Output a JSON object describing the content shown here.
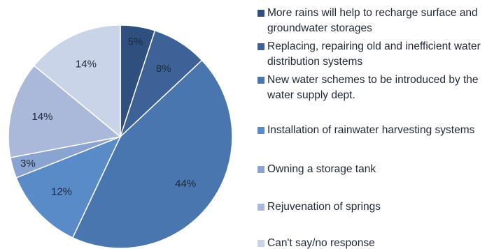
{
  "chart_data": {
    "type": "pie",
    "title": "",
    "slices": [
      {
        "label": "More rains will help to recharge surface and groundwater storages",
        "value": 5,
        "display": "5%",
        "color": "#2f4f7f"
      },
      {
        "label": "Replacing, repairing old and inefficient water distribution systems",
        "value": 8,
        "display": "8%",
        "color": "#3d6298"
      },
      {
        "label": "New water schemes to be introduced by the water supply dept.",
        "value": 44,
        "display": "44%",
        "color": "#4a76b0"
      },
      {
        "label": "Installation of rainwater harvesting  systems",
        "value": 12,
        "display": "12%",
        "color": "#5a8bc9"
      },
      {
        "label": "Owning a storage tank",
        "value": 3,
        "display": "3%",
        "color": "#8aa4d2"
      },
      {
        "label": "Rejuvenation of springs",
        "value": 14,
        "display": "14%",
        "color": "#aab8d9"
      },
      {
        "label": "Can't say/no response",
        "value": 14,
        "display": "14%",
        "color": "#cad4e8"
      }
    ],
    "legend_position": "right"
  }
}
